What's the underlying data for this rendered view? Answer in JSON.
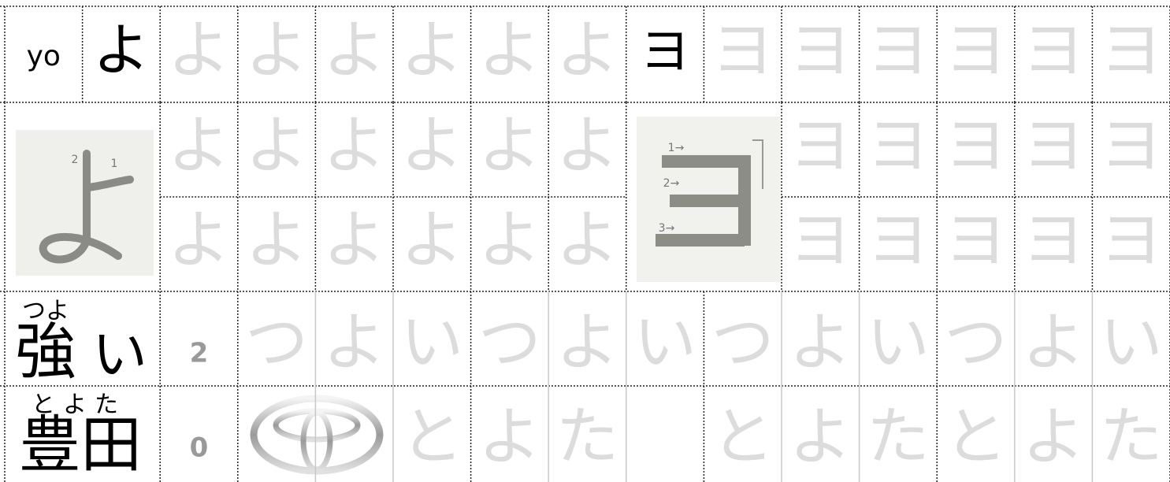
{
  "row1": {
    "romaji": "yo",
    "hiragana": "よ",
    "hiragana_trace": [
      "よ",
      "よ",
      "よ",
      "よ",
      "よ",
      "よ"
    ],
    "katakana": "ヨ",
    "katakana_trace": [
      "ヨ",
      "ヨ",
      "ヨ",
      "ヨ",
      "ヨ",
      "ヨ"
    ]
  },
  "stroke_rows": {
    "hiragana_stroke_labels": [
      "2",
      "1"
    ],
    "katakana_stroke_labels": [
      "1→",
      "2→",
      "3→"
    ],
    "hiragana_trace": [
      [
        "よ",
        "よ",
        "よ",
        "よ",
        "よ",
        "よ"
      ],
      [
        "よ",
        "よ",
        "よ",
        "よ",
        "よ",
        "よ"
      ]
    ],
    "katakana_trace": [
      [
        "ヨ",
        "ヨ",
        "ヨ",
        "ヨ",
        "ヨ"
      ],
      [
        "ヨ",
        "ヨ",
        "ヨ",
        "ヨ",
        "ヨ"
      ]
    ]
  },
  "words": [
    {
      "furigana": "つよ",
      "kanji": "強",
      "okurigana": "い",
      "count": 2,
      "trace": [
        "つ",
        "よ",
        "い",
        "つ",
        "よ",
        "い",
        "つ",
        "よ",
        "い",
        "つ",
        "よ",
        "い"
      ]
    },
    {
      "furigana": "とよた",
      "kanji": "豊田",
      "count": 0,
      "trace_first": [
        "と",
        "よ",
        "た"
      ],
      "trace_second": [
        "と",
        "よ",
        "た",
        "と",
        "よ",
        "た"
      ]
    }
  ]
}
